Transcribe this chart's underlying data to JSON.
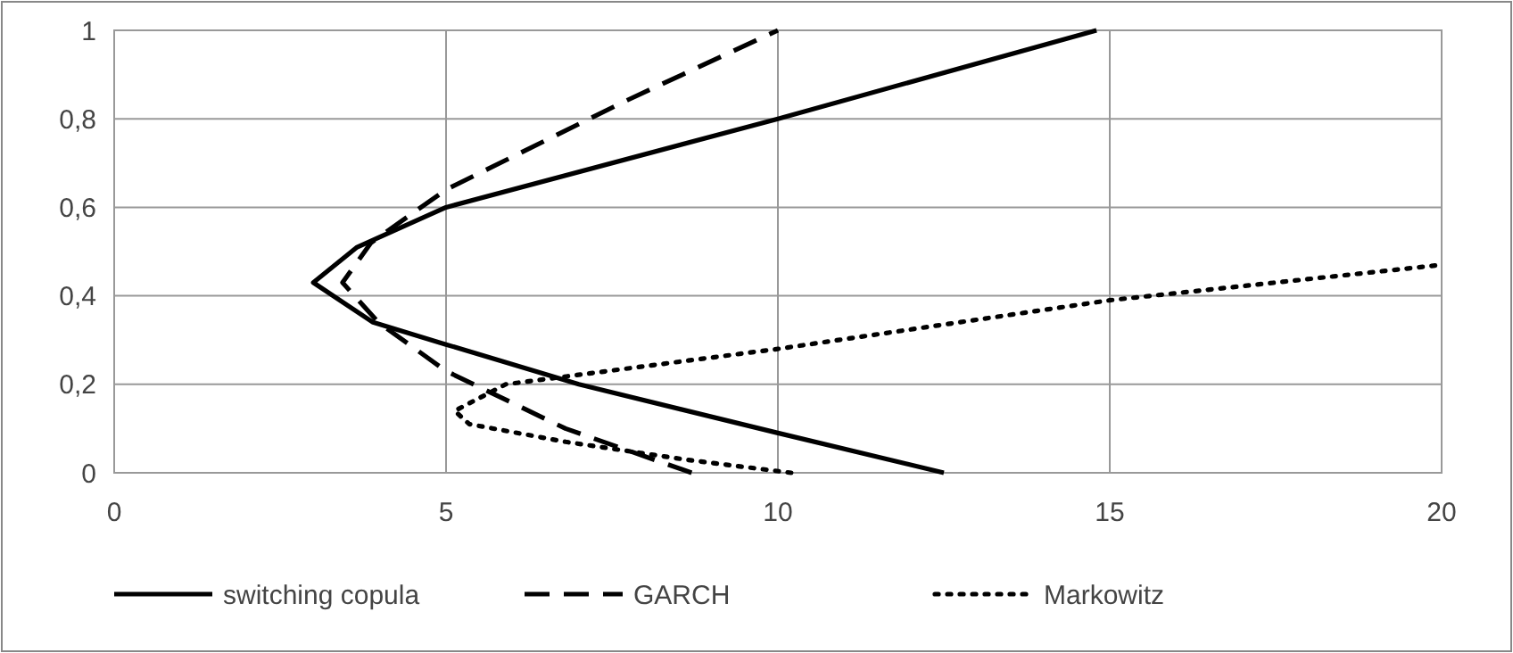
{
  "chart_data": {
    "type": "line",
    "xlim": [
      0,
      20
    ],
    "xticks": [
      0,
      5,
      10,
      15,
      20
    ],
    "ylim": [
      0,
      1
    ],
    "yticks": [
      0,
      {
        "value": 0.2,
        "label": "0,2"
      },
      {
        "value": 0.4,
        "label": "0,4"
      },
      {
        "value": 0.6,
        "label": "0,6"
      },
      {
        "value": 0.8,
        "label": "0,8"
      },
      1
    ],
    "grid": true,
    "legend": "bottom",
    "marker": "none",
    "series": [
      {
        "name": "switching copula",
        "color": "#000000",
        "line_style": "solid",
        "x": [
          12.5,
          10,
          7,
          5,
          3.9,
          3.0,
          3.66,
          5,
          10,
          14.8
        ],
        "values": [
          0,
          0.09,
          0.2,
          0.29,
          0.34,
          0.43,
          0.51,
          0.6,
          0.8,
          1
        ]
      },
      {
        "name": "GARCH",
        "color": "#000000",
        "line_style": "dashed",
        "x": [
          8.7,
          6.8,
          5,
          3.98,
          3.44,
          3.87,
          5,
          7.7,
          10
        ],
        "values": [
          0,
          0.1,
          0.23,
          0.34,
          0.43,
          0.52,
          0.64,
          0.84,
          1
        ]
      },
      {
        "name": "Markowitz",
        "color": "#000000",
        "line_style": "dotted",
        "x": [
          10.2,
          8.6,
          6.8,
          5.35,
          5.13,
          5.9,
          10,
          15,
          20
        ],
        "values": [
          0,
          0.03,
          0.07,
          0.11,
          0.14,
          0.2,
          0.28,
          0.39,
          0.47
        ]
      }
    ]
  }
}
